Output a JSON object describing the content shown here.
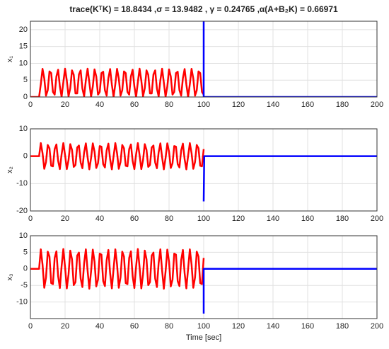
{
  "title": "trace(KᵀK) = 18.8434 ,σ = 13.9482 , γ = 0.24765 ,α(A+B₂K) = 0.66971",
  "chart_data": [
    {
      "type": "line",
      "ylabel": "x₁",
      "xlim": [
        0,
        200
      ],
      "xticks": [
        0,
        20,
        40,
        60,
        80,
        100,
        120,
        140,
        160,
        180,
        200
      ],
      "ylim": [
        0,
        22.5
      ],
      "yticks": [
        0,
        5,
        10,
        15,
        20
      ],
      "grid": true,
      "series": [
        {
          "color": "#ff0000",
          "x": [
            0,
            1,
            2,
            3,
            4,
            5,
            6,
            7,
            8,
            9,
            10,
            11,
            12,
            13,
            14,
            15,
            16,
            17,
            18,
            19,
            20,
            21,
            22,
            23,
            24,
            25,
            26,
            27,
            28,
            29,
            30,
            31,
            32,
            33,
            34,
            35,
            36,
            37,
            38,
            39,
            40,
            41,
            42,
            43,
            44,
            45,
            46,
            47,
            48,
            49,
            50,
            51,
            52,
            53,
            54,
            55,
            56,
            57,
            58,
            59,
            60,
            61,
            62,
            63,
            64,
            65,
            66,
            67,
            68,
            69,
            70,
            71,
            72,
            73,
            74,
            75,
            76,
            77,
            78,
            79,
            80,
            81,
            82,
            83,
            84,
            85,
            86,
            87,
            88,
            89,
            90,
            91,
            92,
            93,
            94,
            95,
            96,
            97,
            98,
            99,
            100
          ],
          "values": [
            0,
            0,
            0,
            0,
            0,
            0,
            3.8,
            8.35,
            5.5,
            0.4,
            2.0,
            7.6,
            7.1,
            1.5,
            0.69,
            6.1,
            8.1,
            3.1,
            0.04,
            4.4,
            8.4,
            4.9,
            0.18,
            2.6,
            7.9,
            6.6,
            1.05,
            1.04,
            6.7,
            7.9,
            2.5,
            0.18,
            5.0,
            8.4,
            4.3,
            0.05,
            3.1,
            8.2,
            6.1,
            0.7,
            1.5,
            7.1,
            7.5,
            2.0,
            0.4,
            5.6,
            8.3,
            3.7,
            0,
            3.8,
            8.35,
            5.5,
            0.4,
            2.0,
            7.6,
            7.1,
            1.5,
            0.69,
            6.1,
            8.1,
            3.1,
            0.04,
            4.4,
            8.4,
            4.9,
            0.18,
            2.6,
            7.9,
            6.6,
            1.05,
            1.04,
            6.7,
            7.9,
            2.5,
            0.18,
            5.0,
            8.4,
            4.3,
            0.05,
            3.1,
            8.2,
            6.1,
            0.7,
            1.5,
            7.1,
            7.5,
            2.0,
            0.4,
            5.6,
            8.3,
            3.7,
            0,
            3.8,
            8.35,
            5.5,
            0.4,
            2.0,
            7.6,
            7.1,
            1.5,
            0.69
          ]
        },
        {
          "color": "#0000ff",
          "x": [
            100,
            100,
            200
          ],
          "values": [
            22.5,
            0,
            0
          ]
        }
      ]
    },
    {
      "type": "line",
      "ylabel": "x₂",
      "xlim": [
        0,
        200
      ],
      "xticks": [
        0,
        20,
        40,
        60,
        80,
        100,
        120,
        140,
        160,
        180,
        200
      ],
      "ylim": [
        -20,
        10
      ],
      "yticks": [
        -20,
        -10,
        0,
        10
      ],
      "grid": true,
      "series": [
        {
          "color": "#ff0000",
          "x": [
            0,
            1,
            2,
            3,
            4,
            5,
            6,
            7,
            8,
            9,
            10,
            11,
            12,
            13,
            14,
            15,
            16,
            17,
            18,
            19,
            20,
            21,
            22,
            23,
            24,
            25,
            26,
            27,
            28,
            29,
            30,
            31,
            32,
            33,
            34,
            35,
            36,
            37,
            38,
            39,
            40,
            41,
            42,
            43,
            44,
            45,
            46,
            47,
            48,
            49,
            50,
            51,
            52,
            53,
            54,
            55,
            56,
            57,
            58,
            59,
            60,
            61,
            62,
            63,
            64,
            65,
            66,
            67,
            68,
            69,
            70,
            71,
            72,
            73,
            74,
            75,
            76,
            77,
            78,
            79,
            80,
            81,
            82,
            83,
            84,
            85,
            86,
            87,
            88,
            89,
            90,
            91,
            92,
            93,
            94,
            95,
            96,
            97,
            98,
            99,
            100
          ],
          "values": [
            0,
            0,
            0,
            0,
            0,
            0,
            4.8,
            1.1,
            -4.6,
            -2.1,
            4.1,
            2.9,
            -3.5,
            -3.7,
            2.6,
            4.3,
            -1.7,
            -4.7,
            0.7,
            4.8,
            0.4,
            -4.7,
            -1.4,
            4.4,
            2.3,
            -3.9,
            -3.2,
            3.2,
            3.9,
            -2.3,
            -4.4,
            1.4,
            4.7,
            -0.4,
            -4.8,
            -0.7,
            4.7,
            1.7,
            -4.3,
            -2.6,
            3.7,
            3.5,
            -2.9,
            -4.1,
            2.1,
            4.6,
            -1.1,
            -4.8,
            0,
            4.8,
            1.1,
            -4.6,
            -2.1,
            4.1,
            2.9,
            -3.5,
            -3.7,
            2.6,
            4.3,
            -1.7,
            -4.7,
            0.7,
            4.8,
            0.4,
            -4.7,
            -1.4,
            4.4,
            2.3,
            -3.9,
            -3.2,
            3.2,
            3.9,
            -2.3,
            -4.4,
            1.4,
            4.7,
            -0.4,
            -4.8,
            -0.7,
            4.7,
            1.7,
            -4.3,
            -2.6,
            3.7,
            3.5,
            -2.9,
            -4.1,
            2.1,
            4.6,
            -1.1,
            -4.8,
            0,
            4.8,
            1.1,
            -4.6,
            -2.1,
            4.1,
            2.9,
            -3.5,
            -3.7,
            2.6
          ]
        },
        {
          "color": "#0000ff",
          "x": [
            100,
            100.3,
            200
          ],
          "values": [
            -16.5,
            0,
            0
          ]
        }
      ]
    },
    {
      "type": "line",
      "ylabel": "x₃",
      "xlabel": "Time [sec]",
      "xlim": [
        0,
        200
      ],
      "xticks": [
        0,
        20,
        40,
        60,
        80,
        100,
        120,
        140,
        160,
        180,
        200
      ],
      "ylim": [
        -15,
        10
      ],
      "yticks": [
        -10,
        -5,
        0,
        5,
        10
      ],
      "grid": true,
      "series": [
        {
          "color": "#ff0000",
          "x": [
            0,
            1,
            2,
            3,
            4,
            5,
            6,
            7,
            8,
            9,
            10,
            11,
            12,
            13,
            14,
            15,
            16,
            17,
            18,
            19,
            20,
            21,
            22,
            23,
            24,
            25,
            26,
            27,
            28,
            29,
            30,
            31,
            32,
            33,
            34,
            35,
            36,
            37,
            38,
            39,
            40,
            41,
            42,
            43,
            44,
            45,
            46,
            47,
            48,
            49,
            50,
            51,
            52,
            53,
            54,
            55,
            56,
            57,
            58,
            59,
            60,
            61,
            62,
            63,
            64,
            65,
            66,
            67,
            68,
            69,
            70,
            71,
            72,
            73,
            74,
            75,
            76,
            77,
            78,
            79,
            80,
            81,
            82,
            83,
            84,
            85,
            86,
            87,
            88,
            89,
            90,
            91,
            92,
            93,
            94,
            95,
            96,
            97,
            98,
            99,
            100
          ],
          "values": [
            0,
            0,
            0,
            0,
            0,
            0,
            5.9,
            1.3,
            -5.7,
            -2.6,
            5.2,
            3.7,
            -4.3,
            -4.6,
            3.3,
            5.3,
            -2.2,
            -5.8,
            0.8,
            6,
            0.5,
            -5.9,
            -1.7,
            5.5,
            2.9,
            -4.9,
            -4,
            4,
            4.9,
            -2.9,
            -5.5,
            1.7,
            5.9,
            -0.5,
            -6,
            -0.8,
            5.8,
            2.2,
            -5.3,
            -3.3,
            4.6,
            4.3,
            -3.7,
            -5.2,
            2.6,
            5.7,
            -1.3,
            -5.9,
            0,
            5.9,
            1.3,
            -5.7,
            -2.6,
            5.2,
            3.7,
            -4.3,
            -4.6,
            3.3,
            5.3,
            -2.2,
            -5.8,
            0.8,
            6,
            0.5,
            -5.9,
            -1.7,
            5.5,
            2.9,
            -4.9,
            -4,
            4,
            4.9,
            -2.9,
            -5.5,
            1.7,
            5.9,
            -0.5,
            -6,
            -0.8,
            5.8,
            2.2,
            -5.3,
            -3.3,
            4.6,
            4.3,
            -3.7,
            -5.2,
            2.6,
            5.7,
            -1.3,
            -5.9,
            0,
            5.9,
            1.3,
            -5.7,
            -2.6,
            5.2,
            3.7,
            -4.3,
            -4.6,
            3.3
          ]
        },
        {
          "color": "#0000ff",
          "x": [
            100,
            100,
            200
          ],
          "values": [
            -13.5,
            0,
            0
          ]
        }
      ]
    }
  ]
}
